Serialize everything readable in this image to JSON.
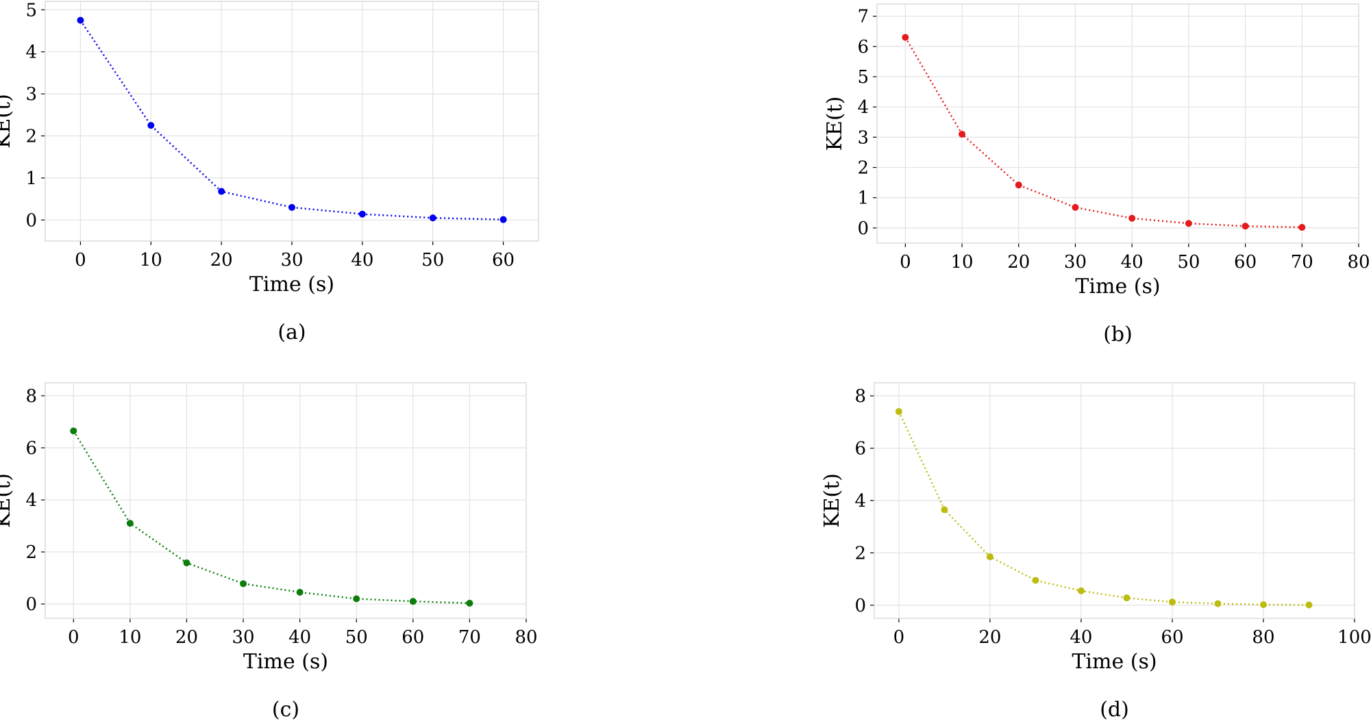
{
  "chart_data": [
    {
      "type": "line",
      "xlabel": "Time (s)",
      "ylabel": "KE(t)",
      "caption": "(a)",
      "color": "#0000ee",
      "grid": true,
      "x": [
        0,
        10,
        20,
        30,
        40,
        50,
        60
      ],
      "values": [
        4.75,
        2.25,
        0.68,
        0.3,
        0.14,
        0.05,
        0.01
      ],
      "xlim": [
        -5,
        65
      ],
      "ylim": [
        -0.5,
        5.2
      ],
      "xticks": [
        0,
        10,
        20,
        30,
        40,
        50,
        60
      ],
      "yticks": [
        0,
        1,
        2,
        3,
        4,
        5
      ]
    },
    {
      "type": "line",
      "xlabel": "Time (s)",
      "ylabel": "KE(t)",
      "caption": "(b)",
      "color": "#e41a1c",
      "grid": true,
      "x": [
        0,
        10,
        20,
        30,
        40,
        50,
        60,
        70
      ],
      "values": [
        6.3,
        3.1,
        1.42,
        0.68,
        0.32,
        0.15,
        0.06,
        0.02
      ],
      "xlim": [
        -5,
        80
      ],
      "ylim": [
        -0.5,
        7.4
      ],
      "xticks": [
        0,
        10,
        20,
        30,
        40,
        50,
        60,
        70,
        80
      ],
      "yticks": [
        0,
        1,
        2,
        3,
        4,
        5,
        6,
        7
      ]
    },
    {
      "type": "line",
      "xlabel": "Time (s)",
      "ylabel": "KE(t)",
      "caption": "(c)",
      "color": "#0a7d0a",
      "grid": true,
      "x": [
        0,
        10,
        20,
        30,
        40,
        50,
        60,
        70
      ],
      "values": [
        6.65,
        3.1,
        1.58,
        0.78,
        0.45,
        0.2,
        0.1,
        0.03
      ],
      "xlim": [
        -5,
        80
      ],
      "ylim": [
        -0.55,
        8.5
      ],
      "xticks": [
        0,
        10,
        20,
        30,
        40,
        50,
        60,
        70,
        80
      ],
      "yticks": [
        0,
        2,
        4,
        6,
        8
      ]
    },
    {
      "type": "line",
      "xlabel": "Time (s)",
      "ylabel": "KE(t)",
      "caption": "(d)",
      "color": "#bcbc10",
      "grid": true,
      "x": [
        0,
        10,
        20,
        30,
        40,
        50,
        60,
        70,
        80,
        90
      ],
      "values": [
        7.4,
        3.65,
        1.85,
        0.95,
        0.55,
        0.28,
        0.12,
        0.06,
        0.02,
        0.01
      ],
      "xlim": [
        -5.4,
        100
      ],
      "ylim": [
        -0.5,
        8.5
      ],
      "xticks": [
        0,
        20,
        40,
        60,
        80,
        100
      ],
      "yticks": [
        0,
        2,
        4,
        6,
        8
      ]
    }
  ]
}
